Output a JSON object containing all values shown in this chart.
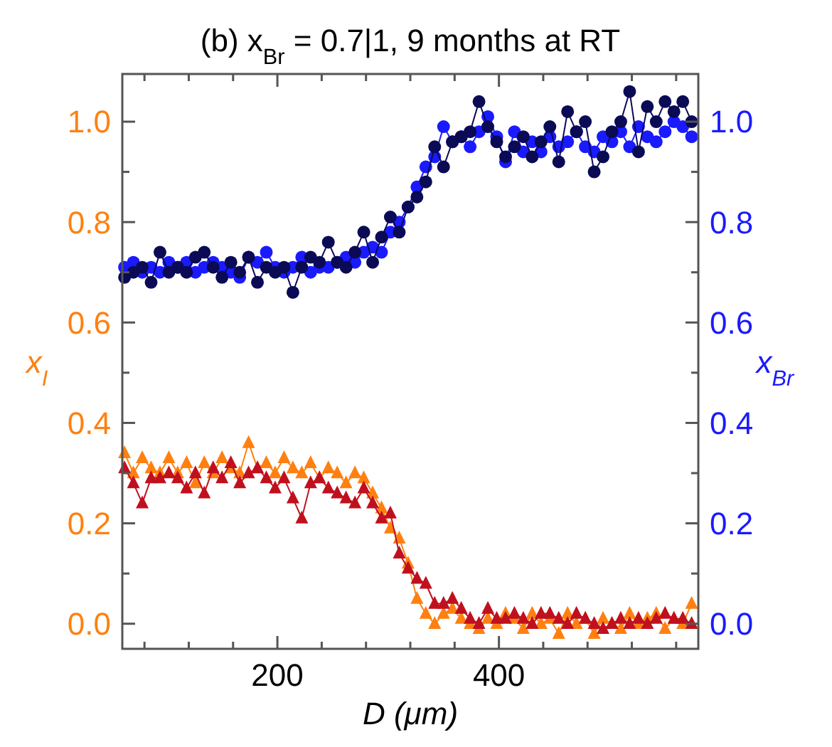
{
  "chart_data": {
    "type": "line",
    "title": "(b) x$_{Br}$ = 0.7|1, 9 months at RT",
    "xlabel": "D  (μm)",
    "ylabel": "x$_{I}$",
    "y2label": "x$_{Br}$",
    "x": [
      62,
      70,
      78,
      86,
      94,
      102,
      110,
      118,
      126,
      134,
      142,
      150,
      158,
      166,
      174,
      182,
      190,
      198,
      206,
      214,
      222,
      230,
      238,
      246,
      254,
      262,
      270,
      278,
      286,
      294,
      302,
      310,
      318,
      326,
      334,
      342,
      350,
      358,
      366,
      374,
      382,
      390,
      398,
      406,
      414,
      422,
      430,
      438,
      446,
      454,
      462,
      470,
      478,
      486,
      494,
      502,
      510,
      518,
      526,
      534,
      542,
      550,
      558,
      566,
      574
    ],
    "series": [
      {
        "color": "#ff8010",
        "marker": "triangle",
        "axis": "y",
        "values": [
          0.34,
          0.3,
          0.33,
          0.31,
          0.3,
          0.33,
          0.3,
          0.32,
          0.28,
          0.32,
          0.3,
          0.33,
          0.31,
          0.3,
          0.36,
          0.31,
          0.32,
          0.3,
          0.33,
          0.31,
          0.3,
          0.32,
          0.29,
          0.31,
          0.3,
          0.28,
          0.3,
          0.29,
          0.26,
          0.23,
          0.19,
          0.17,
          0.12,
          0.05,
          0.02,
          0.0,
          0.02,
          0.03,
          0.01,
          0.0,
          -0.01,
          0.01,
          0.0,
          0.02,
          0.01,
          -0.01,
          0.02,
          0.0,
          0.01,
          -0.02,
          0.02,
          0.0,
          0.01,
          -0.02,
          0.01,
          0.0,
          -0.01,
          0.02,
          0.0,
          0.01,
          0.02,
          -0.01,
          0.01,
          0.0,
          0.04
        ]
      },
      {
        "color": "#c0101e",
        "marker": "triangle",
        "axis": "y",
        "values": [
          0.31,
          0.28,
          0.24,
          0.29,
          0.29,
          0.3,
          0.29,
          0.27,
          0.3,
          0.26,
          0.31,
          0.29,
          0.32,
          0.28,
          0.3,
          0.31,
          0.29,
          0.27,
          0.29,
          0.25,
          0.21,
          0.28,
          0.29,
          0.27,
          0.26,
          0.25,
          0.24,
          0.27,
          0.24,
          0.21,
          0.22,
          0.14,
          0.11,
          0.09,
          0.08,
          0.04,
          0.04,
          0.05,
          0.03,
          0.01,
          0.0,
          0.03,
          0.01,
          0.01,
          0.02,
          0.01,
          0.0,
          0.02,
          0.02,
          0.01,
          0.0,
          0.02,
          0.01,
          0.0,
          -0.01,
          0.0,
          0.01,
          0.0,
          0.01,
          0.0,
          0.01,
          0.02,
          0.01,
          0.01,
          0.0
        ]
      },
      {
        "color": "#1a1aff",
        "marker": "circle",
        "axis": "y2",
        "values": [
          0.71,
          0.72,
          0.7,
          0.71,
          0.7,
          0.72,
          0.71,
          0.72,
          0.7,
          0.71,
          0.72,
          0.71,
          0.7,
          0.69,
          0.73,
          0.72,
          0.74,
          0.71,
          0.7,
          0.71,
          0.73,
          0.7,
          0.71,
          0.71,
          0.72,
          0.73,
          0.72,
          0.74,
          0.75,
          0.74,
          0.78,
          0.8,
          0.83,
          0.87,
          0.91,
          0.93,
          0.99,
          0.96,
          0.97,
          0.95,
          0.98,
          1.01,
          0.97,
          0.92,
          0.98,
          0.94,
          0.96,
          0.94,
          0.97,
          0.95,
          0.96,
          0.98,
          0.95,
          0.94,
          0.97,
          0.96,
          0.98,
          0.95,
          0.99,
          0.97,
          0.96,
          0.98,
          1.0,
          0.99,
          0.97
        ]
      },
      {
        "color": "#0a0a55",
        "marker": "circle",
        "axis": "y2",
        "values": [
          0.69,
          0.7,
          0.71,
          0.68,
          0.74,
          0.7,
          0.71,
          0.7,
          0.73,
          0.74,
          0.71,
          0.69,
          0.72,
          0.7,
          0.73,
          0.68,
          0.71,
          0.7,
          0.71,
          0.66,
          0.71,
          0.73,
          0.72,
          0.76,
          0.72,
          0.71,
          0.74,
          0.78,
          0.72,
          0.77,
          0.81,
          0.78,
          0.83,
          0.85,
          0.88,
          0.95,
          0.91,
          0.96,
          0.97,
          0.98,
          1.04,
          0.99,
          0.96,
          0.93,
          0.95,
          0.97,
          0.93,
          0.96,
          0.99,
          0.92,
          1.02,
          0.98,
          1.0,
          0.9,
          0.93,
          0.98,
          1.0,
          1.06,
          0.94,
          1.03,
          1.0,
          1.04,
          1.02,
          1.04,
          1.0
        ]
      }
    ],
    "xlim": [
      60,
      580
    ],
    "xticks": [
      {
        "value": 80,
        "label": null
      },
      {
        "value": 120,
        "label": null
      },
      {
        "value": 160,
        "label": null
      },
      200,
      {
        "value": 240,
        "label": null
      },
      {
        "value": 280,
        "label": null
      },
      {
        "value": 320,
        "label": null
      },
      {
        "value": 360,
        "label": null
      },
      400,
      {
        "value": 440,
        "label": null
      },
      {
        "value": 480,
        "label": null
      },
      {
        "value": 520,
        "label": null
      },
      {
        "value": 560,
        "label": null
      }
    ],
    "ylim": [
      -0.05,
      1.095
    ],
    "yticks": [
      {
        "value": 0,
        "label": "0.0"
      },
      {
        "value": 0.1,
        "label": null
      },
      {
        "value": 0.2,
        "label": "0.2"
      },
      {
        "value": 0.3,
        "label": null
      },
      {
        "value": 0.4,
        "label": "0.4"
      },
      {
        "value": 0.5,
        "label": null
      },
      {
        "value": 0.6,
        "label": "0.6"
      },
      {
        "value": 0.7,
        "label": null
      },
      {
        "value": 0.8,
        "label": "0.8"
      },
      {
        "value": 0.9,
        "label": null
      },
      {
        "value": 1,
        "label": "1.0"
      }
    ],
    "y2lim": [
      -0.05,
      1.095
    ],
    "y2ticks": [
      {
        "value": 0,
        "label": "0.0"
      },
      {
        "value": 0.1,
        "label": null
      },
      {
        "value": 0.2,
        "label": "0.2"
      },
      {
        "value": 0.3,
        "label": null
      },
      {
        "value": 0.4,
        "label": "0.4"
      },
      {
        "value": 0.5,
        "label": null
      },
      {
        "value": 0.6,
        "label": "0.6"
      },
      {
        "value": 0.7,
        "label": null
      },
      {
        "value": 0.8,
        "label": "0.8"
      },
      {
        "value": 0.9,
        "label": null
      },
      {
        "value": 1,
        "label": "1.0"
      }
    ],
    "grid": false,
    "line_style": "solid"
  }
}
